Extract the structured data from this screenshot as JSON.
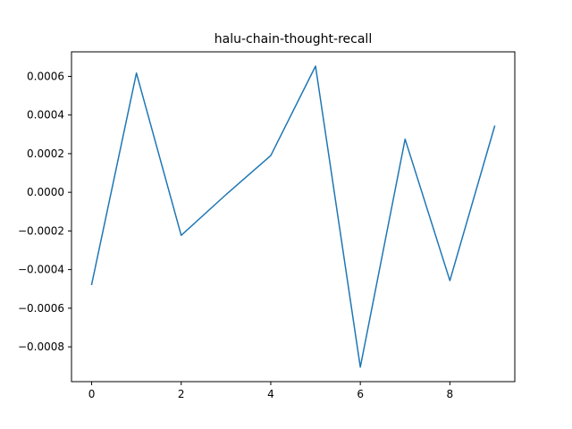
{
  "chart_data": {
    "type": "line",
    "title": "halu-chain-thought-recall",
    "xlabel": "",
    "ylabel": "",
    "xlim": [
      -0.45,
      9.45
    ],
    "ylim": [
      -0.00098,
      0.000727
    ],
    "grid": false,
    "x_ticks": [
      0,
      2,
      4,
      6,
      8
    ],
    "x_tick_labels": [
      "0",
      "2",
      "4",
      "6",
      "8"
    ],
    "y_ticks": [
      -0.0008,
      -0.0006,
      -0.0004,
      -0.0002,
      0.0,
      0.0002,
      0.0004,
      0.0006
    ],
    "y_tick_labels": [
      "−0.0008",
      "−0.0006",
      "−0.0004",
      "−0.0002",
      "0.0000",
      "0.0002",
      "0.0004",
      "0.0006"
    ],
    "series": [
      {
        "color": "#1f77b4",
        "x": [
          0,
          1,
          2,
          3,
          4,
          5,
          6,
          7,
          8,
          9
        ],
        "values": [
          -0.000477,
          0.000617,
          -0.000223,
          -1.2e-05,
          0.00019,
          0.000653,
          -0.000905,
          0.000275,
          -0.000457,
          0.000342
        ]
      }
    ]
  }
}
